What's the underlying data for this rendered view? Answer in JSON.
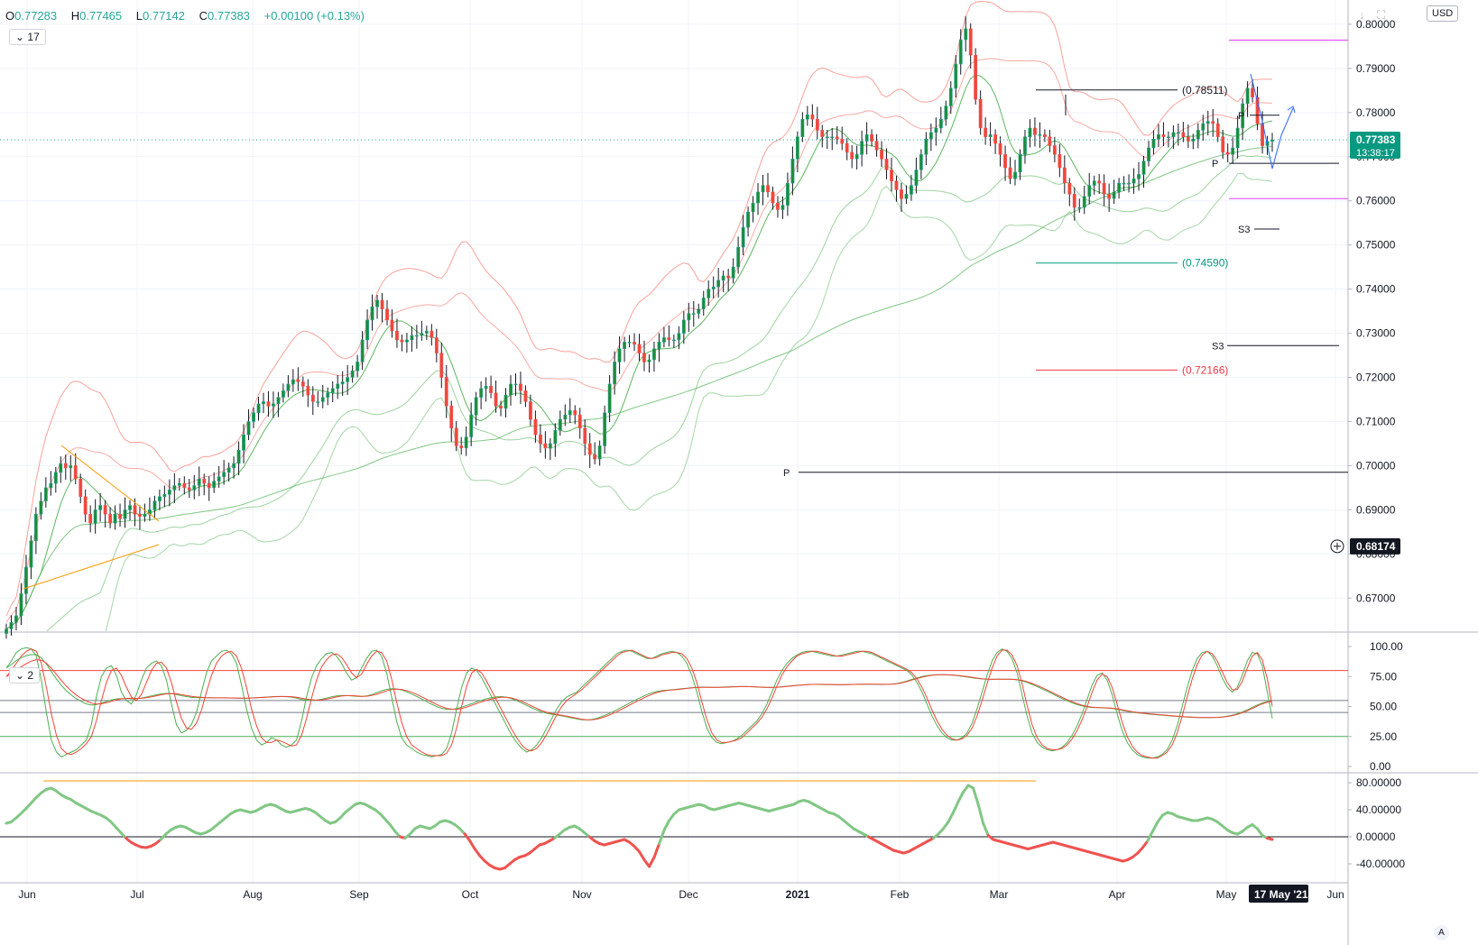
{
  "header": {
    "open_label": "O",
    "open": "0.77283",
    "high_label": "H",
    "high": "0.77465",
    "low_label": "L",
    "low": "0.77142",
    "close_label": "C",
    "close": "0.77383",
    "change": "+0.00100 (+0.13%)"
  },
  "controls": {
    "main_count": "17",
    "oscillator_count": "2",
    "currency": "USD",
    "timezone": "A"
  },
  "price_badge": {
    "price": "0.77383",
    "countdown": "13:38:17",
    "crosshair_price": "0.68174"
  },
  "chart_data": [
    {
      "type": "candlestick",
      "instrument_currency": "USD",
      "x_ticks": [
        "Jun",
        "Jul",
        "Aug",
        "Sep",
        "Oct",
        "Nov",
        "Dec",
        "2021",
        "Feb",
        "Mar",
        "Apr",
        "May",
        "17 May '21",
        "Jun"
      ],
      "y_ticks": [
        "0.67000",
        "0.68000",
        "0.69000",
        "0.70000",
        "0.71000",
        "0.72000",
        "0.73000",
        "0.74000",
        "0.75000",
        "0.76000",
        "0.77000",
        "0.78000",
        "0.79000",
        "0.80000"
      ],
      "ylim": [
        0.6625,
        0.8055
      ],
      "series_close": [
        0.663,
        0.6645,
        0.666,
        0.671,
        0.677,
        0.683,
        0.689,
        0.692,
        0.695,
        0.696,
        0.6985,
        0.7005,
        0.6995,
        0.7,
        0.697,
        0.693,
        0.689,
        0.687,
        0.69,
        0.691,
        0.689,
        0.687,
        0.689,
        0.688,
        0.69,
        0.691,
        0.689,
        0.6885,
        0.689,
        0.69,
        0.692,
        0.693,
        0.6935,
        0.6945,
        0.6955,
        0.696,
        0.695,
        0.6945,
        0.6955,
        0.697,
        0.696,
        0.695,
        0.6965,
        0.6975,
        0.6985,
        0.6995,
        0.7005,
        0.7035,
        0.707,
        0.71,
        0.712,
        0.714,
        0.7145,
        0.7135,
        0.714,
        0.7155,
        0.717,
        0.7185,
        0.7195,
        0.719,
        0.718,
        0.716,
        0.7145,
        0.7145,
        0.7155,
        0.7165,
        0.7175,
        0.7185,
        0.719,
        0.72,
        0.7215,
        0.7235,
        0.7285,
        0.733,
        0.736,
        0.7375,
        0.7355,
        0.733,
        0.7305,
        0.7285,
        0.728,
        0.7285,
        0.7295,
        0.7295,
        0.73,
        0.7305,
        0.729,
        0.7255,
        0.72,
        0.7135,
        0.7085,
        0.7045,
        0.704,
        0.7065,
        0.7115,
        0.7155,
        0.7175,
        0.718,
        0.7165,
        0.7135,
        0.713,
        0.716,
        0.7185,
        0.7185,
        0.717,
        0.7145,
        0.7105,
        0.707,
        0.705,
        0.704,
        0.705,
        0.708,
        0.7105,
        0.7115,
        0.7125,
        0.7115,
        0.7085,
        0.705,
        0.7025,
        0.7015,
        0.7045,
        0.712,
        0.7185,
        0.7235,
        0.7265,
        0.728,
        0.728,
        0.7275,
        0.7255,
        0.7235,
        0.724,
        0.7265,
        0.728,
        0.729,
        0.7285,
        0.7285,
        0.73,
        0.733,
        0.7345,
        0.7345,
        0.7355,
        0.738,
        0.74,
        0.7405,
        0.742,
        0.743,
        0.7425,
        0.745,
        0.7495,
        0.754,
        0.7575,
        0.7595,
        0.762,
        0.7635,
        0.762,
        0.7595,
        0.758,
        0.759,
        0.764,
        0.7695,
        0.7745,
        0.7785,
        0.7795,
        0.7785,
        0.776,
        0.7745,
        0.7745,
        0.7745,
        0.774,
        0.773,
        0.771,
        0.7695,
        0.7705,
        0.7735,
        0.775,
        0.7735,
        0.7715,
        0.7695,
        0.767,
        0.7645,
        0.7625,
        0.7605,
        0.7615,
        0.7635,
        0.767,
        0.7705,
        0.774,
        0.7755,
        0.7765,
        0.7785,
        0.7815,
        0.7855,
        0.791,
        0.7965,
        0.799,
        0.793,
        0.783,
        0.7765,
        0.7745,
        0.775,
        0.773,
        0.7705,
        0.7675,
        0.765,
        0.7665,
        0.7705,
        0.7745,
        0.7765,
        0.775,
        0.775,
        0.7745,
        0.7725,
        0.7705,
        0.7675,
        0.764,
        0.7615,
        0.7585,
        0.7585,
        0.761,
        0.7635,
        0.7645,
        0.764,
        0.7615,
        0.7605,
        0.762,
        0.764,
        0.764,
        0.764,
        0.765,
        0.766,
        0.769,
        0.772,
        0.774,
        0.775,
        0.7745,
        0.7745,
        0.7755,
        0.7755,
        0.7745,
        0.7735,
        0.774,
        0.776,
        0.7775,
        0.778,
        0.7775,
        0.7745,
        0.771,
        0.7705,
        0.772,
        0.7765,
        0.782,
        0.7855,
        0.7835,
        0.7775,
        0.7725,
        0.7735,
        0.7738
      ],
      "price_lines": [
        {
          "name": "(0.78511)",
          "value": 0.78511,
          "color": "#131722"
        },
        {
          "name": "(0.74590)",
          "value": 0.7459,
          "color": "#089981"
        },
        {
          "name": "(0.72166)",
          "value": 0.72166,
          "color": "#f23645"
        },
        {
          "name": "P",
          "value": 0.6985,
          "color": "#131722"
        },
        {
          "name": "P",
          "value": 0.7685,
          "color": "#131722"
        },
        {
          "name": "P",
          "value": 0.7794,
          "color": "#131722"
        },
        {
          "name": "S3",
          "value": 0.7272,
          "color": "#131722"
        },
        {
          "name": "S3",
          "value": 0.7536,
          "color": "#131722"
        },
        {
          "name": "",
          "value": 0.7964,
          "color": "#e040fb"
        },
        {
          "name": "",
          "value": 0.7605,
          "color": "#e040fb"
        }
      ],
      "overlays": [
        "moving-average",
        "bollinger-band-inner",
        "bollinger-band-outer"
      ],
      "current_price": 0.77383
    },
    {
      "type": "line",
      "name": "stochastic-rsi",
      "y_ticks": [
        "0.00",
        "25.00",
        "50.00",
        "75.00",
        "100.00"
      ],
      "ylim": [
        -4,
        104
      ],
      "levels": [
        25,
        45,
        55,
        80
      ],
      "series": [
        {
          "color": "#4caf50",
          "values": [
            82,
            88,
            95,
            98,
            99,
            98,
            92,
            72,
            45,
            22,
            12,
            8,
            10,
            12,
            14,
            18,
            22,
            35,
            58,
            75,
            82,
            84,
            76,
            62,
            55,
            52,
            60,
            72,
            82,
            86,
            88,
            84,
            72,
            52,
            35,
            28,
            30,
            35,
            45,
            62,
            78,
            88,
            92,
            96,
            97,
            94,
            86,
            68,
            48,
            32,
            22,
            18,
            20,
            24,
            22,
            18,
            16,
            18,
            22,
            38,
            58,
            74,
            84,
            90,
            94,
            95,
            92,
            86,
            78,
            72,
            74,
            82,
            90,
            96,
            97,
            92,
            78,
            58,
            38,
            24,
            18,
            15,
            12,
            10,
            9,
            8,
            9,
            10,
            15,
            28,
            48,
            66,
            78,
            82,
            80,
            74,
            66,
            58,
            50,
            42,
            34,
            26,
            20,
            15,
            12,
            14,
            18,
            24,
            32,
            40,
            48,
            54,
            58,
            60,
            62,
            66,
            70,
            74,
            78,
            82,
            86,
            90,
            94,
            96,
            97,
            96,
            94,
            92,
            90,
            90,
            92,
            94,
            95,
            96,
            95,
            92,
            86,
            76,
            62,
            46,
            32,
            24,
            20,
            19,
            20,
            21,
            23,
            26,
            30,
            34,
            38,
            44,
            52,
            62,
            72,
            80,
            86,
            90,
            93,
            95,
            96,
            96,
            95,
            94,
            93,
            92,
            92,
            93,
            94,
            95,
            96,
            96,
            95,
            94,
            92,
            90,
            88,
            86,
            84,
            82,
            80,
            76,
            70,
            62,
            52,
            42,
            34,
            28,
            24,
            22,
            22,
            24,
            28,
            36,
            48,
            62,
            76,
            88,
            95,
            98,
            96,
            90,
            78,
            60,
            42,
            28,
            20,
            16,
            14,
            13,
            14,
            16,
            20,
            26,
            34,
            44,
            56,
            68,
            76,
            78,
            72,
            60,
            44,
            30,
            20,
            14,
            10,
            8,
            7,
            7,
            8,
            10,
            14,
            22,
            34,
            50,
            66,
            80,
            90,
            95,
            96,
            92,
            84,
            74,
            66,
            62,
            66,
            76,
            88,
            95,
            94,
            84,
            62,
            40
          ]
        },
        {
          "color": "#f44336",
          "values": [
            75,
            80,
            86,
            92,
            96,
            98,
            96,
            86,
            66,
            44,
            26,
            15,
            11,
            10,
            12,
            15,
            19,
            25,
            38,
            55,
            70,
            80,
            82,
            76,
            66,
            58,
            55,
            60,
            70,
            80,
            86,
            87,
            82,
            70,
            54,
            40,
            32,
            31,
            36,
            47,
            62,
            76,
            86,
            92,
            95,
            96,
            92,
            82,
            66,
            48,
            34,
            24,
            20,
            20,
            22,
            21,
            19,
            17,
            18,
            26,
            40,
            57,
            72,
            83,
            89,
            93,
            94,
            91,
            85,
            78,
            74,
            77,
            85,
            92,
            96,
            95,
            88,
            73,
            54,
            37,
            25,
            18,
            15,
            12,
            10,
            9,
            9,
            9,
            11,
            18,
            32,
            50,
            67,
            78,
            81,
            78,
            71,
            63,
            55,
            47,
            39,
            31,
            24,
            18,
            14,
            13,
            15,
            20,
            27,
            35,
            43,
            50,
            55,
            58,
            61,
            64,
            68,
            72,
            76,
            80,
            84,
            88,
            92,
            95,
            96,
            97,
            95,
            93,
            91,
            90,
            91,
            93,
            94,
            95,
            95,
            94,
            90,
            82,
            70,
            54,
            39,
            28,
            22,
            20,
            20,
            21,
            22,
            24,
            28,
            32,
            36,
            41,
            48,
            57,
            67,
            76,
            83,
            88,
            92,
            94,
            95,
            96,
            96,
            95,
            94,
            93,
            92,
            92,
            93,
            94,
            95,
            96,
            96,
            95,
            93,
            91,
            89,
            87,
            85,
            83,
            81,
            78,
            73,
            66,
            57,
            47,
            38,
            31,
            26,
            23,
            22,
            23,
            26,
            32,
            42,
            55,
            69,
            82,
            92,
            97,
            97,
            93,
            84,
            69,
            51,
            35,
            24,
            18,
            15,
            14,
            14,
            15,
            18,
            23,
            30,
            39,
            50,
            62,
            72,
            77,
            75,
            66,
            52,
            37,
            25,
            17,
            12,
            9,
            8,
            7,
            7,
            9,
            12,
            18,
            28,
            42,
            58,
            73,
            85,
            93,
            96,
            94,
            88,
            79,
            70,
            64,
            64,
            71,
            82,
            92,
            95,
            89,
            73,
            50
          ]
        }
      ]
    },
    {
      "type": "line",
      "name": "momentum-oscillator",
      "y_ticks": [
        "-40.00000",
        "0.00000",
        "40.00000",
        "80.00000"
      ],
      "ylim": [
        -55,
        90
      ],
      "positive_color": "#81c784",
      "negative_color": "#ef5350",
      "values": [
        20,
        22,
        28,
        35,
        42,
        50,
        58,
        65,
        70,
        72,
        68,
        62,
        58,
        55,
        50,
        46,
        42,
        38,
        35,
        32,
        28,
        22,
        14,
        6,
        -2,
        -8,
        -12,
        -15,
        -16,
        -14,
        -10,
        -4,
        4,
        10,
        14,
        16,
        14,
        10,
        6,
        4,
        6,
        10,
        16,
        22,
        28,
        34,
        38,
        40,
        38,
        36,
        38,
        42,
        46,
        48,
        46,
        42,
        38,
        36,
        38,
        40,
        42,
        40,
        36,
        30,
        24,
        20,
        22,
        28,
        36,
        42,
        48,
        50,
        48,
        44,
        40,
        34,
        26,
        18,
        8,
        0,
        -2,
        4,
        12,
        16,
        14,
        12,
        16,
        22,
        24,
        22,
        18,
        12,
        4,
        -6,
        -18,
        -28,
        -36,
        -42,
        -46,
        -48,
        -46,
        -40,
        -34,
        -30,
        -28,
        -24,
        -18,
        -12,
        -10,
        -6,
        -2,
        4,
        10,
        14,
        16,
        12,
        6,
        0,
        -6,
        -10,
        -12,
        -10,
        -8,
        -6,
        -4,
        -8,
        -14,
        -22,
        -34,
        -44,
        -30,
        -10,
        10,
        24,
        34,
        40,
        42,
        44,
        46,
        48,
        46,
        42,
        40,
        42,
        44,
        46,
        48,
        50,
        48,
        46,
        44,
        42,
        40,
        38,
        40,
        42,
        44,
        46,
        48,
        52,
        54,
        52,
        48,
        44,
        40,
        36,
        34,
        30,
        24,
        18,
        12,
        8,
        4,
        0,
        -4,
        -8,
        -12,
        -16,
        -20,
        -22,
        -24,
        -22,
        -18,
        -14,
        -10,
        -6,
        -2,
        4,
        12,
        22,
        36,
        52,
        66,
        76,
        72,
        48,
        20,
        2,
        -4,
        -6,
        -8,
        -10,
        -12,
        -14,
        -16,
        -18,
        -16,
        -14,
        -12,
        -10,
        -8,
        -10,
        -12,
        -14,
        -16,
        -18,
        -20,
        -22,
        -24,
        -26,
        -28,
        -30,
        -32,
        -34,
        -36,
        -34,
        -30,
        -24,
        -16,
        -6,
        8,
        22,
        32,
        36,
        34,
        30,
        28,
        26,
        24,
        24,
        26,
        28,
        26,
        22,
        16,
        10,
        6,
        4,
        8,
        14,
        18,
        12,
        2,
        -2,
        -4
      ]
    }
  ]
}
